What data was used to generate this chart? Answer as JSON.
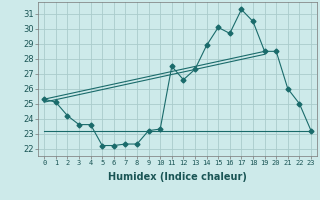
{
  "xlabel": "Humidex (Indice chaleur)",
  "x_ticks": [
    0,
    1,
    2,
    3,
    4,
    5,
    6,
    7,
    8,
    9,
    10,
    11,
    12,
    13,
    14,
    15,
    16,
    17,
    18,
    19,
    20,
    21,
    22,
    23
  ],
  "ylim": [
    21.5,
    31.8
  ],
  "xlim": [
    -0.5,
    23.5
  ],
  "yticks": [
    22,
    23,
    24,
    25,
    26,
    27,
    28,
    29,
    30,
    31
  ],
  "background_color": "#cdeaea",
  "grid_color": "#aacccc",
  "line_color": "#1a6b6b",
  "line1_x": [
    0,
    1,
    2,
    3,
    4,
    5,
    6,
    7,
    8,
    9,
    10,
    11,
    12,
    13,
    14,
    15,
    16,
    17,
    18,
    19,
    20,
    21,
    22,
    23
  ],
  "line1_y": [
    25.3,
    25.1,
    24.2,
    23.6,
    23.6,
    22.2,
    22.2,
    22.3,
    22.3,
    23.2,
    23.3,
    27.5,
    26.6,
    27.3,
    28.9,
    30.1,
    29.7,
    31.3,
    30.5,
    28.5,
    28.5,
    26.0,
    25.0,
    23.2
  ],
  "line2_x": [
    0,
    23
  ],
  "line2_y": [
    23.2,
    23.2
  ],
  "line3_x": [
    0,
    19
  ],
  "line3_y": [
    25.3,
    28.5
  ],
  "line4_x": [
    0,
    19
  ],
  "line4_y": [
    25.1,
    28.3
  ]
}
